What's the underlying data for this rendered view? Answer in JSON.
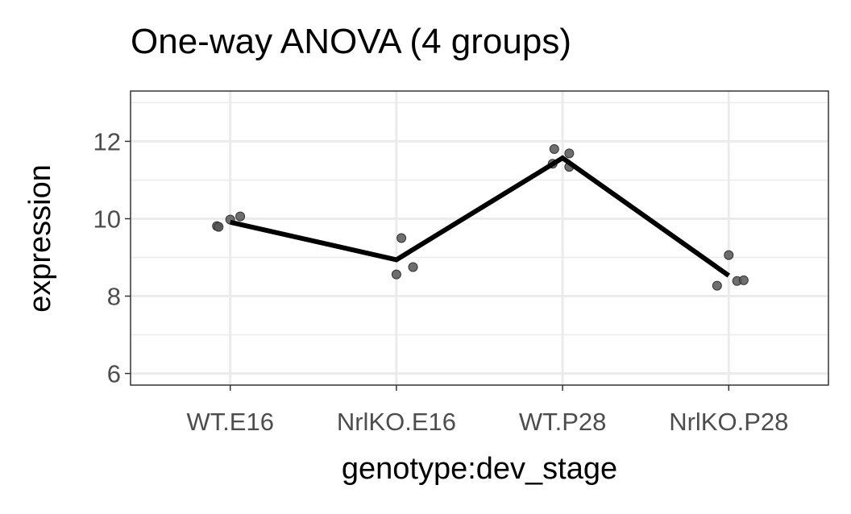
{
  "chart_data": {
    "type": "scatter",
    "title": "One-way ANOVA (4 groups)",
    "xlabel": "genotype:dev_stage",
    "ylabel": "expression",
    "categories": [
      "WT.E16",
      "NrlKO.E16",
      "WT.P28",
      "NrlKO.P28"
    ],
    "ylim": [
      5.7,
      13.3
    ],
    "yticks": [
      6,
      8,
      10,
      12
    ],
    "grid": true,
    "points": [
      {
        "cat": 0,
        "dx": -0.08,
        "y": 9.81
      },
      {
        "cat": 0,
        "dx": -0.07,
        "y": 9.79
      },
      {
        "cat": 0,
        "dx": 0.0,
        "y": 9.98
      },
      {
        "cat": 0,
        "dx": 0.06,
        "y": 10.06
      },
      {
        "cat": 1,
        "dx": 0.0,
        "y": 8.56
      },
      {
        "cat": 1,
        "dx": 0.03,
        "y": 9.5
      },
      {
        "cat": 1,
        "dx": 0.1,
        "y": 8.75
      },
      {
        "cat": 2,
        "dx": -0.05,
        "y": 11.8
      },
      {
        "cat": 2,
        "dx": -0.06,
        "y": 11.42
      },
      {
        "cat": 2,
        "dx": 0.04,
        "y": 11.69
      },
      {
        "cat": 2,
        "dx": 0.04,
        "y": 11.34
      },
      {
        "cat": 3,
        "dx": -0.07,
        "y": 8.27
      },
      {
        "cat": 3,
        "dx": 0.0,
        "y": 9.06
      },
      {
        "cat": 3,
        "dx": 0.05,
        "y": 8.39
      },
      {
        "cat": 3,
        "dx": 0.09,
        "y": 8.41
      }
    ],
    "mean_line": [
      9.91,
      8.94,
      11.57,
      8.53
    ],
    "colors": {
      "points": "#555555",
      "line": "#000000",
      "grid": "#ebebeb",
      "border": "#333333"
    }
  }
}
